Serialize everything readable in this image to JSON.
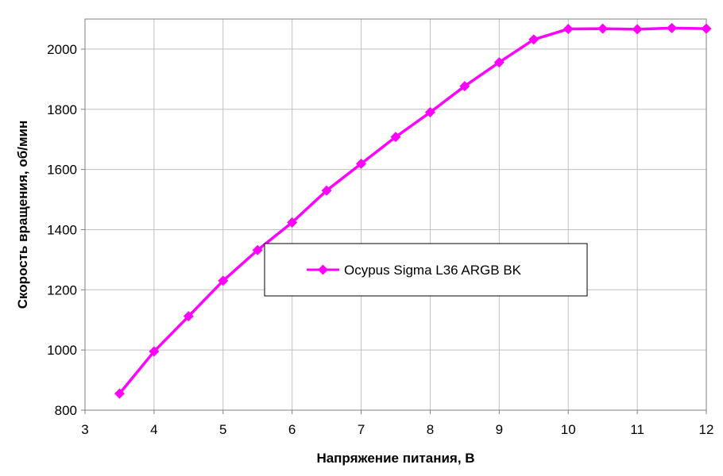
{
  "chart_data": {
    "type": "line",
    "xlabel": "Напряжение питания, В",
    "ylabel": "Скорость вращения, об/мин",
    "xlim": [
      3,
      12
    ],
    "ylim": [
      800,
      2100
    ],
    "x_ticks": [
      3,
      4,
      5,
      6,
      7,
      8,
      9,
      10,
      11,
      12
    ],
    "y_ticks": [
      800,
      1000,
      1200,
      1400,
      1600,
      1800,
      2000
    ],
    "grid": true,
    "legend_position": "center-right",
    "colors": {
      "series": "#FF00FF",
      "grid": "#C0C0C0",
      "axis": "#808080"
    },
    "series": [
      {
        "name": "Ocypus Sigma L36 ARGB BK",
        "marker": "diamond",
        "x": [
          3.5,
          4,
          4.5,
          5,
          5.5,
          6,
          6.5,
          7,
          7.5,
          8,
          8.5,
          9,
          9.5,
          10,
          10.5,
          11,
          11.5,
          12
        ],
        "values": [
          855,
          995,
          1112,
          1230,
          1332,
          1424,
          1530,
          1619,
          1708,
          1790,
          1877,
          1956,
          2032,
          2067,
          2068,
          2066,
          2070,
          2068
        ]
      }
    ]
  }
}
